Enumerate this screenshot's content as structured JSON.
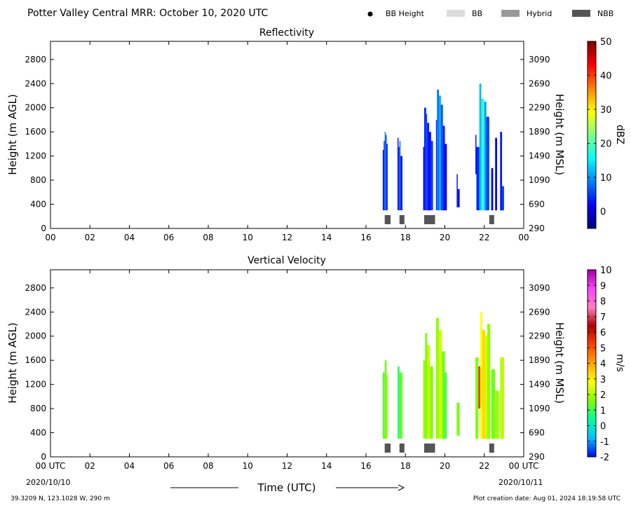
{
  "header": {
    "title": "Potter Valley Central MRR:  October 10, 2020 UTC",
    "legend": [
      {
        "label": "BB Height",
        "kind": "dot",
        "color": "#000000"
      },
      {
        "label": "BB",
        "kind": "swatch",
        "color": "#dcdcdc"
      },
      {
        "label": "Hybrid",
        "kind": "swatch",
        "color": "#999999"
      },
      {
        "label": "NBB",
        "kind": "swatch",
        "color": "#555555"
      }
    ]
  },
  "footer": {
    "location": "39.3209 N, 123.1028 W, 290 m",
    "creation": "Plot creation date: Aug 01, 2024 18:19:58 UTC",
    "date_left": "2020/10/10",
    "date_right": "2020/10/11",
    "time_label": "Time (UTC)"
  },
  "chart_data": [
    {
      "type": "heatmap",
      "title": "Reflectivity",
      "ylabel": "Height (m AGL)",
      "y2label": "Height (m MSL)",
      "xlim": [
        0,
        24
      ],
      "ylim": [
        0,
        3100
      ],
      "x_ticks": [
        "00",
        "02",
        "04",
        "06",
        "08",
        "10",
        "12",
        "14",
        "16",
        "18",
        "20",
        "22",
        "00"
      ],
      "y_ticks": [
        0,
        400,
        800,
        1200,
        1600,
        2000,
        2400,
        2800
      ],
      "y2_ticks": [
        290,
        690,
        1090,
        1490,
        1890,
        2290,
        2690,
        3090
      ],
      "colorbar": {
        "label": "dBZ",
        "min": -5,
        "max": 50,
        "ticks": [
          0,
          10,
          20,
          30,
          40,
          50
        ],
        "colors": [
          "#00007f",
          "#0000ff",
          "#0080ff",
          "#00ffff",
          "#80ff80",
          "#ffff00",
          "#ff8000",
          "#ff0000",
          "#7f0000"
        ]
      },
      "columns": [
        {
          "start": 16.85,
          "end": 16.9,
          "base": 300,
          "top": 1300,
          "value": 2
        },
        {
          "start": 16.9,
          "end": 16.95,
          "base": 300,
          "top": 1450,
          "value": 4
        },
        {
          "start": 16.95,
          "end": 17.0,
          "base": 300,
          "top": 1600,
          "value": 8
        },
        {
          "start": 17.0,
          "end": 17.05,
          "base": 300,
          "top": 1550,
          "value": 6
        },
        {
          "start": 17.05,
          "end": 17.1,
          "base": 300,
          "top": 1400,
          "value": 3
        },
        {
          "start": 17.6,
          "end": 17.65,
          "base": 300,
          "top": 1500,
          "value": 2
        },
        {
          "start": 17.65,
          "end": 17.7,
          "base": 300,
          "top": 1350,
          "value": 5
        },
        {
          "start": 17.7,
          "end": 17.75,
          "base": 300,
          "top": 1450,
          "value": 7
        },
        {
          "start": 17.75,
          "end": 17.85,
          "base": 300,
          "top": 1200,
          "value": 3
        },
        {
          "start": 18.9,
          "end": 18.95,
          "base": 300,
          "top": 1350,
          "value": 2
        },
        {
          "start": 18.95,
          "end": 19.05,
          "base": 300,
          "top": 2000,
          "value": 4
        },
        {
          "start": 19.05,
          "end": 19.1,
          "base": 300,
          "top": 1900,
          "value": 6
        },
        {
          "start": 19.1,
          "end": 19.2,
          "base": 300,
          "top": 1750,
          "value": 3
        },
        {
          "start": 19.2,
          "end": 19.3,
          "base": 300,
          "top": 1600,
          "value": 2
        },
        {
          "start": 19.3,
          "end": 19.4,
          "base": 300,
          "top": 1450,
          "value": 5
        },
        {
          "start": 19.55,
          "end": 19.6,
          "base": 300,
          "top": 1800,
          "value": 4
        },
        {
          "start": 19.6,
          "end": 19.7,
          "base": 300,
          "top": 2300,
          "value": 8
        },
        {
          "start": 19.7,
          "end": 19.8,
          "base": 300,
          "top": 2200,
          "value": 11
        },
        {
          "start": 19.8,
          "end": 19.9,
          "base": 300,
          "top": 2050,
          "value": 6
        },
        {
          "start": 19.9,
          "end": 20.0,
          "base": 300,
          "top": 1700,
          "value": 3
        },
        {
          "start": 20.0,
          "end": 20.1,
          "base": 300,
          "top": 1400,
          "value": 2
        },
        {
          "start": 20.6,
          "end": 20.65,
          "base": 350,
          "top": 900,
          "value": 1
        },
        {
          "start": 20.65,
          "end": 20.75,
          "base": 350,
          "top": 650,
          "value": 2
        },
        {
          "start": 21.55,
          "end": 21.6,
          "base": 900,
          "top": 1550,
          "value": 2
        },
        {
          "start": 21.6,
          "end": 21.75,
          "base": 300,
          "top": 1350,
          "value": 4
        },
        {
          "start": 21.75,
          "end": 21.85,
          "base": 300,
          "top": 2400,
          "value": 12
        },
        {
          "start": 21.85,
          "end": 22.0,
          "base": 300,
          "top": 2150,
          "value": 18
        },
        {
          "start": 22.0,
          "end": 22.1,
          "base": 300,
          "top": 2100,
          "value": 10
        },
        {
          "start": 22.1,
          "end": 22.25,
          "base": 300,
          "top": 1850,
          "value": 5
        },
        {
          "start": 22.35,
          "end": 22.45,
          "base": 300,
          "top": 1000,
          "value": 2
        },
        {
          "start": 22.55,
          "end": 22.65,
          "base": 300,
          "top": 1500,
          "value": 2
        },
        {
          "start": 22.8,
          "end": 22.9,
          "base": 300,
          "top": 1600,
          "value": 3
        },
        {
          "start": 22.9,
          "end": 23.0,
          "base": 300,
          "top": 700,
          "value": 5
        }
      ],
      "bb_markers": [
        {
          "start": 16.95,
          "end": 17.25,
          "kind": "NBB"
        },
        {
          "start": 17.7,
          "end": 17.95,
          "kind": "NBB"
        },
        {
          "start": 18.95,
          "end": 19.5,
          "kind": "NBB"
        },
        {
          "start": 22.25,
          "end": 22.5,
          "kind": "NBB"
        }
      ]
    },
    {
      "type": "heatmap",
      "title": "Vertical Velocity",
      "ylabel": "Height (m AGL)",
      "y2label": "Height (m MSL)",
      "xlim": [
        0,
        24
      ],
      "ylim": [
        0,
        3100
      ],
      "x_ticks": [
        "00 UTC",
        "02",
        "04",
        "06",
        "08",
        "10",
        "12",
        "14",
        "16",
        "18",
        "20",
        "22",
        "00 UTC"
      ],
      "y_ticks": [
        0,
        400,
        800,
        1200,
        1600,
        2000,
        2400,
        2800
      ],
      "y2_ticks": [
        290,
        690,
        1090,
        1490,
        1890,
        2290,
        2690,
        3090
      ],
      "colorbar": {
        "label": "m/s",
        "min": -2,
        "max": 10,
        "ticks": [
          -2,
          -1,
          0,
          1,
          2,
          3,
          4,
          5,
          6,
          7,
          8,
          9,
          10
        ],
        "colors": [
          "#0000ff",
          "#00bfff",
          "#00ffa0",
          "#80ff00",
          "#ffff00",
          "#ffa500",
          "#ff4000",
          "#b00000",
          "#ff80c0",
          "#ff40ff",
          "#a000a0"
        ]
      },
      "columns": [
        {
          "start": 16.85,
          "end": 16.95,
          "base": 300,
          "top": 1400,
          "value": 1.2
        },
        {
          "start": 16.95,
          "end": 17.05,
          "base": 300,
          "top": 1600,
          "value": 1.5
        },
        {
          "start": 17.05,
          "end": 17.1,
          "base": 300,
          "top": 1350,
          "value": 2.0
        },
        {
          "start": 17.6,
          "end": 17.7,
          "base": 300,
          "top": 1500,
          "value": 0.8
        },
        {
          "start": 17.7,
          "end": 17.85,
          "base": 300,
          "top": 1400,
          "value": 1.3
        },
        {
          "start": 18.9,
          "end": 19.0,
          "base": 300,
          "top": 1600,
          "value": 1.8
        },
        {
          "start": 19.0,
          "end": 19.1,
          "base": 300,
          "top": 2050,
          "value": 1.5
        },
        {
          "start": 19.1,
          "end": 19.25,
          "base": 300,
          "top": 1850,
          "value": 2.2
        },
        {
          "start": 19.25,
          "end": 19.4,
          "base": 300,
          "top": 1500,
          "value": 1.6
        },
        {
          "start": 19.55,
          "end": 19.7,
          "base": 300,
          "top": 2300,
          "value": 1.8
        },
        {
          "start": 19.7,
          "end": 19.85,
          "base": 300,
          "top": 2100,
          "value": 2.4
        },
        {
          "start": 19.85,
          "end": 20.0,
          "base": 300,
          "top": 1750,
          "value": 1.4
        },
        {
          "start": 20.0,
          "end": 20.1,
          "base": 300,
          "top": 1400,
          "value": 1.0
        },
        {
          "start": 20.6,
          "end": 20.75,
          "base": 350,
          "top": 900,
          "value": 1.5
        },
        {
          "start": 21.55,
          "end": 21.7,
          "base": 300,
          "top": 1650,
          "value": 1.6
        },
        {
          "start": 21.7,
          "end": 21.8,
          "base": 800,
          "top": 1500,
          "value": 5.5
        },
        {
          "start": 21.8,
          "end": 21.9,
          "base": 300,
          "top": 2400,
          "value": 2.8
        },
        {
          "start": 21.9,
          "end": 22.05,
          "base": 300,
          "top": 2100,
          "value": 3.3
        },
        {
          "start": 22.05,
          "end": 22.15,
          "base": 300,
          "top": 2000,
          "value": 2.3
        },
        {
          "start": 22.15,
          "end": 22.3,
          "base": 300,
          "top": 2200,
          "value": 1.7
        },
        {
          "start": 22.35,
          "end": 22.55,
          "base": 300,
          "top": 1450,
          "value": 1.4
        },
        {
          "start": 22.55,
          "end": 22.75,
          "base": 300,
          "top": 1100,
          "value": 1.9
        },
        {
          "start": 22.8,
          "end": 23.0,
          "base": 300,
          "top": 1650,
          "value": 2.1
        }
      ],
      "bb_markers": [
        {
          "start": 16.95,
          "end": 17.25,
          "kind": "NBB"
        },
        {
          "start": 17.7,
          "end": 17.95,
          "kind": "NBB"
        },
        {
          "start": 18.95,
          "end": 19.5,
          "kind": "NBB"
        },
        {
          "start": 22.25,
          "end": 22.5,
          "kind": "NBB"
        }
      ]
    }
  ]
}
